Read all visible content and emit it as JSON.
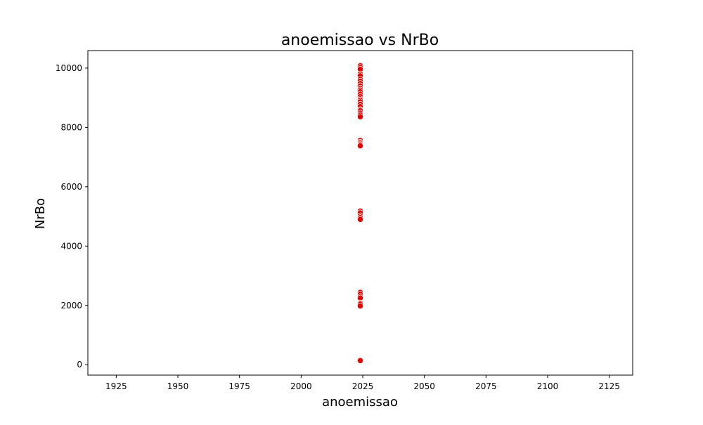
{
  "chart_data": {
    "type": "scatter",
    "title": "anoemissao vs NrBo",
    "xlabel": "anoemissao",
    "ylabel": "NrBo",
    "xlim": [
      1913.5,
      2134.5
    ],
    "ylim": [
      -350,
      10590
    ],
    "xticks": [
      1925,
      1950,
      1975,
      2000,
      2025,
      2050,
      2075,
      2100,
      2125
    ],
    "yticks": [
      0,
      2000,
      4000,
      6000,
      8000,
      10000
    ],
    "grid": false,
    "legend": "none",
    "marker_color": "#e60000",
    "series": [
      {
        "x": [
          2024,
          2024,
          2024,
          2024,
          2024,
          2024,
          2024,
          2024,
          2024,
          2024,
          2024,
          2024,
          2024,
          2024,
          2024,
          2024,
          2024,
          2024,
          2024,
          2024,
          2024,
          2024,
          2024,
          2024,
          2024,
          2024,
          2024,
          2024,
          2024,
          2024,
          2024,
          2024,
          2024,
          2024,
          2024,
          2024,
          2024,
          2024,
          2024,
          2024,
          2024,
          2024,
          2024,
          2024,
          2024
        ],
        "y": [
          10080,
          10020,
          9960,
          9800,
          9740,
          9620,
          9560,
          9480,
          9400,
          9320,
          9260,
          9200,
          9120,
          9040,
          8960,
          8920,
          8860,
          8780,
          8700,
          8600,
          8560,
          8480,
          8420,
          8360,
          7560,
          7500,
          7460,
          7420,
          7380,
          5180,
          5120,
          5020,
          4960,
          4900,
          2440,
          2380,
          2300,
          2250,
          2080,
          2040,
          1980,
          180,
          160,
          150,
          140
        ]
      }
    ]
  }
}
